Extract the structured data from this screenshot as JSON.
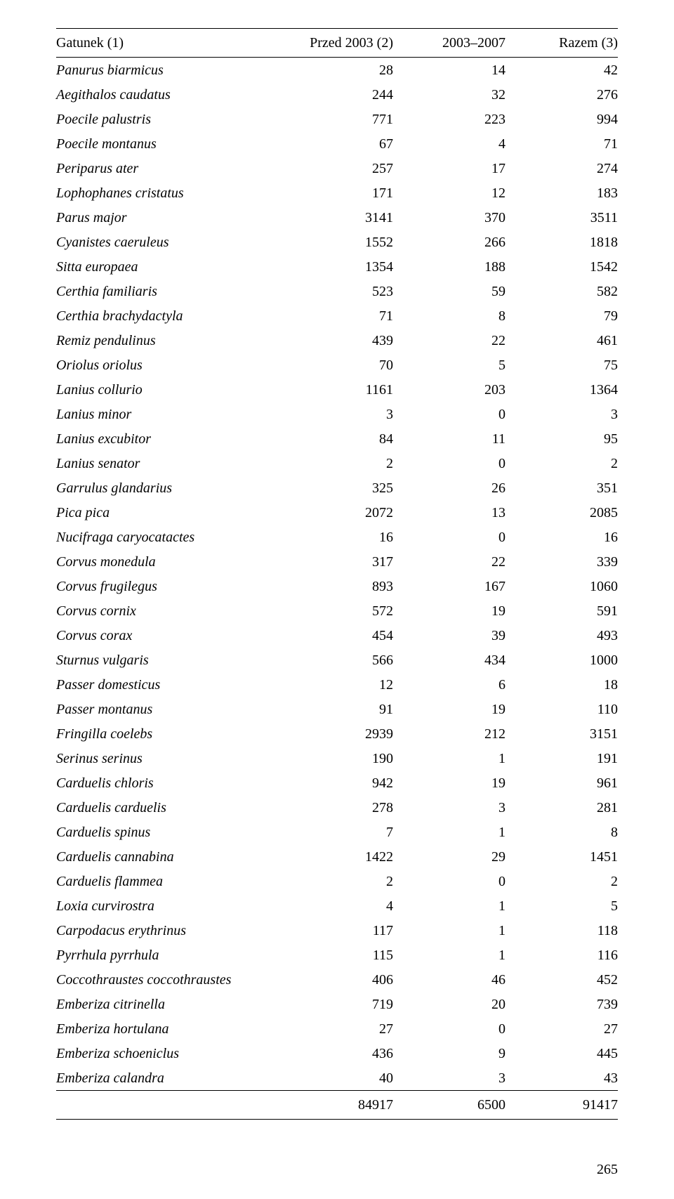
{
  "table": {
    "headers": [
      "Gatunek (1)",
      "Przed 2003 (2)",
      "2003–2007",
      "Razem (3)"
    ],
    "rows": [
      [
        "Panurus biarmicus",
        "28",
        "14",
        "42"
      ],
      [
        "Aegithalos caudatus",
        "244",
        "32",
        "276"
      ],
      [
        "Poecile palustris",
        "771",
        "223",
        "994"
      ],
      [
        "Poecile montanus",
        "67",
        "4",
        "71"
      ],
      [
        "Periparus ater",
        "257",
        "17",
        "274"
      ],
      [
        "Lophophanes cristatus",
        "171",
        "12",
        "183"
      ],
      [
        "Parus major",
        "3141",
        "370",
        "3511"
      ],
      [
        "Cyanistes caeruleus",
        "1552",
        "266",
        "1818"
      ],
      [
        "Sitta europaea",
        "1354",
        "188",
        "1542"
      ],
      [
        "Certhia familiaris",
        "523",
        "59",
        "582"
      ],
      [
        "Certhia brachydactyla",
        "71",
        "8",
        "79"
      ],
      [
        "Remiz pendulinus",
        "439",
        "22",
        "461"
      ],
      [
        "Oriolus oriolus",
        "70",
        "5",
        "75"
      ],
      [
        "Lanius collurio",
        "1161",
        "203",
        "1364"
      ],
      [
        "Lanius minor",
        "3",
        "0",
        "3"
      ],
      [
        "Lanius excubitor",
        "84",
        "11",
        "95"
      ],
      [
        "Lanius senator",
        "2",
        "0",
        "2"
      ],
      [
        "Garrulus glandarius",
        "325",
        "26",
        "351"
      ],
      [
        "Pica pica",
        "2072",
        "13",
        "2085"
      ],
      [
        "Nucifraga caryocatactes",
        "16",
        "0",
        "16"
      ],
      [
        "Corvus monedula",
        "317",
        "22",
        "339"
      ],
      [
        "Corvus frugilegus",
        "893",
        "167",
        "1060"
      ],
      [
        "Corvus cornix",
        "572",
        "19",
        "591"
      ],
      [
        "Corvus corax",
        "454",
        "39",
        "493"
      ],
      [
        "Sturnus vulgaris",
        "566",
        "434",
        "1000"
      ],
      [
        "Passer domesticus",
        "12",
        "6",
        "18"
      ],
      [
        "Passer montanus",
        "91",
        "19",
        "110"
      ],
      [
        "Fringilla coelebs",
        "2939",
        "212",
        "3151"
      ],
      [
        "Serinus serinus",
        "190",
        "1",
        "191"
      ],
      [
        "Carduelis chloris",
        "942",
        "19",
        "961"
      ],
      [
        "Carduelis carduelis",
        "278",
        "3",
        "281"
      ],
      [
        "Carduelis spinus",
        "7",
        "1",
        "8"
      ],
      [
        "Carduelis cannabina",
        "1422",
        "29",
        "1451"
      ],
      [
        "Carduelis flammea",
        "2",
        "0",
        "2"
      ],
      [
        "Loxia curvirostra",
        "4",
        "1",
        "5"
      ],
      [
        "Carpodacus erythrinus",
        "117",
        "1",
        "118"
      ],
      [
        "Pyrrhula pyrrhula",
        "115",
        "1",
        "116"
      ],
      [
        "Coccothraustes coccothraustes",
        "406",
        "46",
        "452"
      ],
      [
        "Emberiza citrinella",
        "719",
        "20",
        "739"
      ],
      [
        "Emberiza hortulana",
        "27",
        "0",
        "27"
      ],
      [
        "Emberiza schoeniclus",
        "436",
        "9",
        "445"
      ],
      [
        "Emberiza calandra",
        "40",
        "3",
        "43"
      ]
    ],
    "total": [
      "",
      "84917",
      "6500",
      "91417"
    ],
    "column_align": [
      "left",
      "right",
      "right",
      "right"
    ],
    "font_family": "serif",
    "font_size_pt": 15,
    "text_color": "#000000",
    "background_color": "#ffffff",
    "rule_color": "#000000"
  },
  "page_number": "265"
}
